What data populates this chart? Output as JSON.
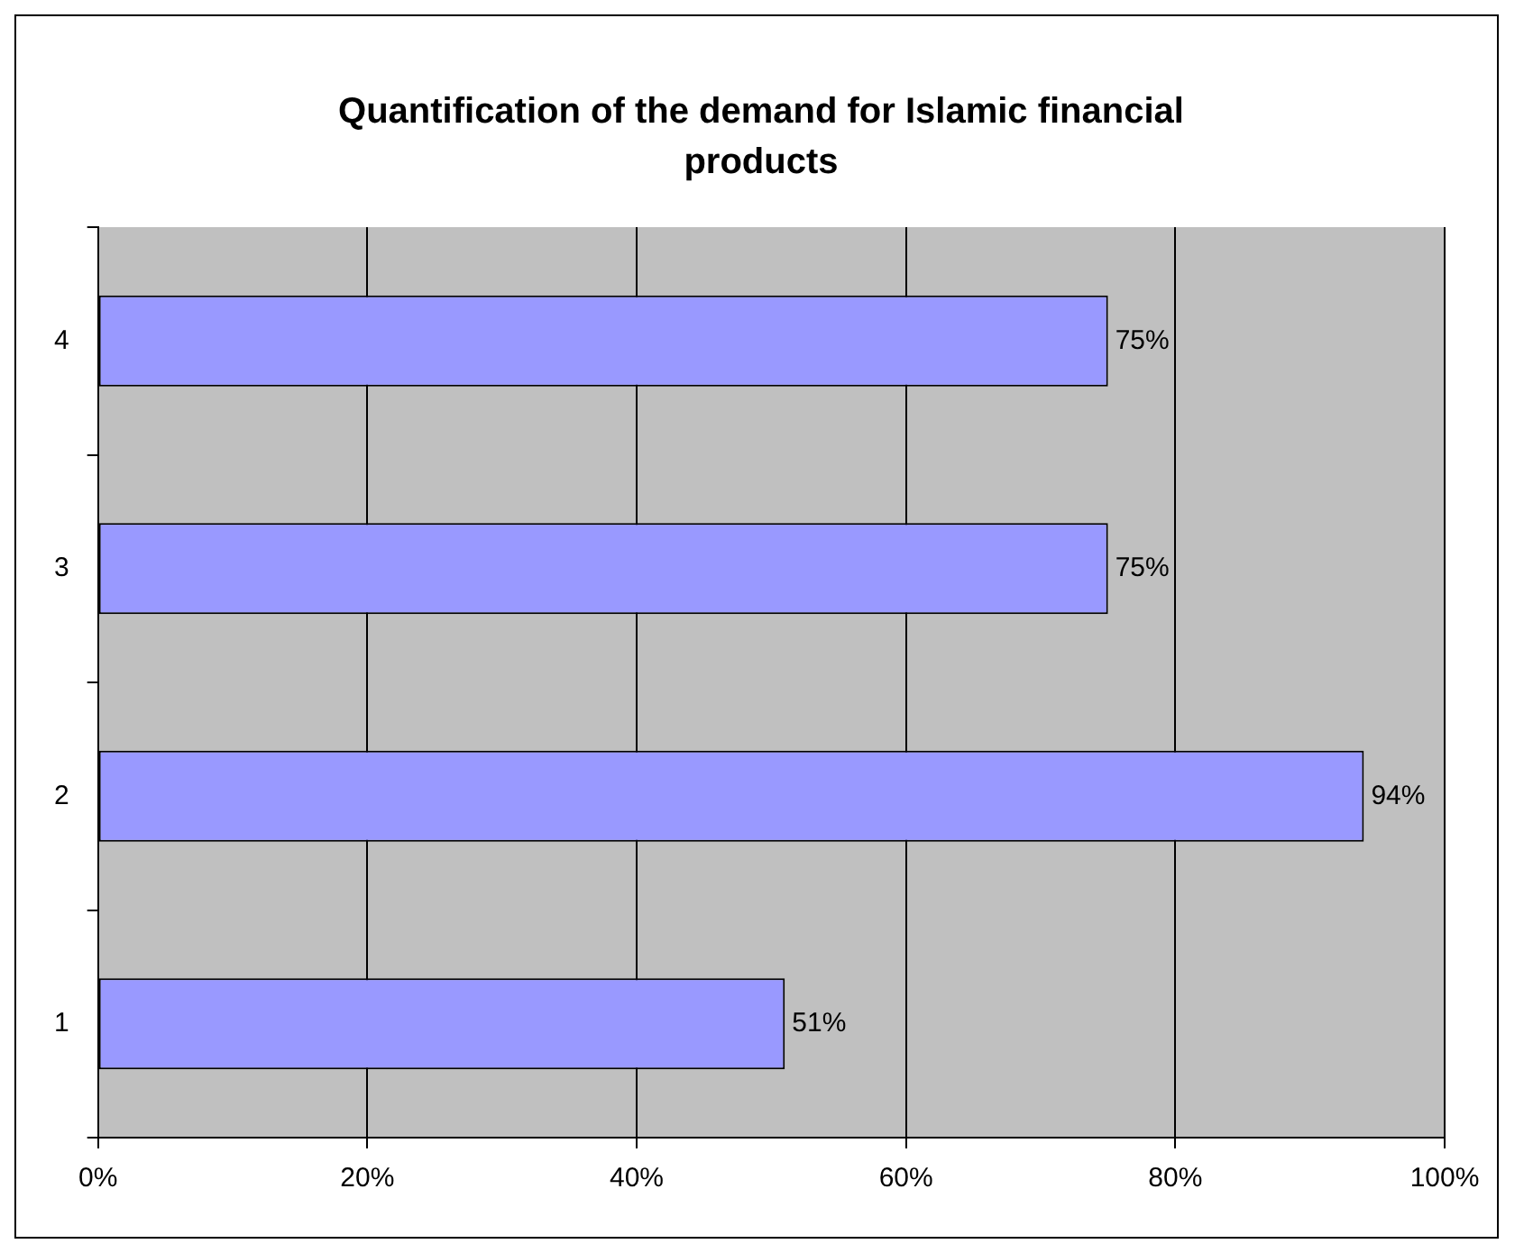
{
  "chart_data": {
    "type": "bar",
    "orientation": "horizontal",
    "title": "Quantification of the demand for Islamic financial products",
    "categories": [
      "4",
      "3",
      "2",
      "1"
    ],
    "values": [
      75,
      75,
      94,
      51
    ],
    "value_labels": [
      "75%",
      "75%",
      "94%",
      "51%"
    ],
    "color": "#9999ff",
    "xlim": [
      0,
      100
    ],
    "xticks": [
      {
        "value": 0,
        "label": "0%"
      },
      {
        "value": 20,
        "label": "20%"
      },
      {
        "value": 40,
        "label": "40%"
      },
      {
        "value": 60,
        "label": "60%"
      },
      {
        "value": 80,
        "label": "80%"
      },
      {
        "value": 100,
        "label": "100%"
      }
    ],
    "grid": "x",
    "legend": false
  }
}
